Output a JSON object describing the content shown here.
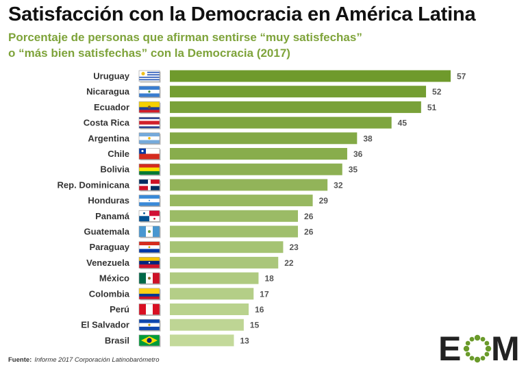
{
  "title": "Satisfacción con la Democracia en América Latina",
  "subtitle_line1": "Porcentaje de personas que afirman sentirse “muy satisfechas”",
  "subtitle_line2": "o “más bien satisfechas” con la Democracia (2017)",
  "source_label": "Fuente:",
  "source_text": "Informe 2017 Corporación Latinobarómetro",
  "logo": {
    "letter_left": "E",
    "letter_right": "M",
    "icon": "ring-of-dots-logo-icon",
    "color_dark": "#222222",
    "color_green": "#6a9a2a"
  },
  "chart_data": {
    "type": "bar",
    "orientation": "horizontal",
    "categories": [
      "Uruguay",
      "Nicaragua",
      "Ecuador",
      "Costa Rica",
      "Argentina",
      "Chile",
      "Bolivia",
      "Rep. Dominicana",
      "Honduras",
      "Panamá",
      "Guatemala",
      "Paraguay",
      "Venezuela",
      "México",
      "Colombia",
      "Perú",
      "El Salvador",
      "Brasil"
    ],
    "values": [
      57,
      52,
      51,
      45,
      38,
      36,
      35,
      32,
      29,
      26,
      26,
      23,
      22,
      18,
      17,
      16,
      15,
      13
    ],
    "data_labels": [
      "57",
      "52",
      "51",
      "45",
      "38",
      "36",
      "35",
      "32",
      "29",
      "26",
      "26",
      "23",
      "22",
      "18",
      "17",
      "16",
      "15",
      "13"
    ],
    "flag_icons": [
      "uruguay-flag-icon",
      "nicaragua-flag-icon",
      "ecuador-flag-icon",
      "costa-rica-flag-icon",
      "argentina-flag-icon",
      "chile-flag-icon",
      "bolivia-flag-icon",
      "dominican-republic-flag-icon",
      "honduras-flag-icon",
      "panama-flag-icon",
      "guatemala-flag-icon",
      "paraguay-flag-icon",
      "venezuela-flag-icon",
      "mexico-flag-icon",
      "colombia-flag-icon",
      "peru-flag-icon",
      "el-salvador-flag-icon",
      "brazil-flag-icon"
    ],
    "xlim": [
      0,
      57
    ],
    "grid": false,
    "legend": "none",
    "bar_color_dark": "#6f9a2c",
    "bar_color_light": "#c3d99a"
  }
}
